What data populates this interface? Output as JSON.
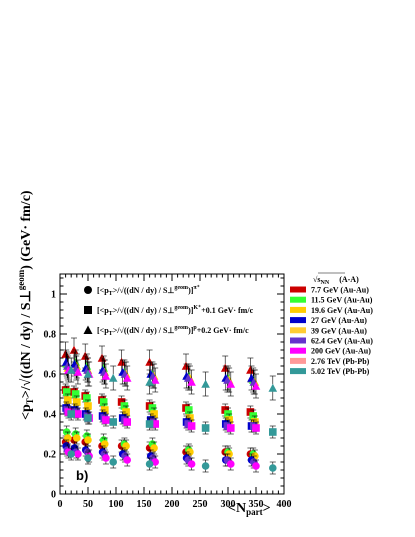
{
  "chart_data": {
    "type": "scatter",
    "xlabel": "<N",
    "xlabel_sub": "part",
    "xlabel_tail": ">",
    "ylabel_main": "<p",
    "ylabel_sub": "T",
    "ylabel_rest": ">/√((dN / dy) / S",
    "ylabel_perp": "⊥",
    "ylabel_sup": "geom",
    "ylabel_unit": ") (GeV· fm/c)",
    "xlim": [
      0,
      400
    ],
    "ylim": [
      0,
      1.1
    ],
    "x_ticks": [
      0,
      50,
      100,
      150,
      200,
      250,
      300,
      350,
      400
    ],
    "y_ticks": [
      0,
      0.2,
      0.4,
      0.6,
      0.8,
      1
    ],
    "panel_label": "b)",
    "formula_legend": [
      {
        "marker": "circle",
        "base": "[<p",
        "sub": "T",
        "mid": ">/√((dN / dy) / S",
        "perp": "⊥",
        "sup": "geom",
        "close": ")]",
        "particle": "π⁺",
        "offset": ""
      },
      {
        "marker": "square",
        "base": "[<p",
        "sub": "T",
        "mid": ">/√((dN / dy) / S",
        "perp": "⊥",
        "sup": "geom",
        "close": ")]",
        "particle": "K⁺",
        "offset": "+0.1 GeV· fm/c"
      },
      {
        "marker": "triangle",
        "base": "[<p",
        "sub": "T",
        "mid": ">/√((dN / dy) / S",
        "perp": "⊥",
        "sup": "geom",
        "close": ")]",
        "particle": "p",
        "offset": "+0.2 GeV· fm/c"
      }
    ],
    "energy_legend": {
      "header_sqrt": "√s",
      "header_sub": "NN",
      "header_tail": "(A-A)",
      "entries": [
        {
          "label": "7.7 GeV  (Au-Au)",
          "color": "#cc0000"
        },
        {
          "label": "11.5 GeV (Au-Au)",
          "color": "#33ff33"
        },
        {
          "label": "19.6 GeV (Au-Au)",
          "color": "#ffcc00"
        },
        {
          "label": "27 GeV    (Au-Au)",
          "color": "#0000cc"
        },
        {
          "label": "39 GeV    (Au-Au)",
          "color": "#ffcc33"
        },
        {
          "label": "62.4 GeV (Au-Au)",
          "color": "#6633cc"
        },
        {
          "label": "200 GeV  (Au-Au)",
          "color": "#ff00ff"
        },
        {
          "label": "2.76 TeV (Pb-Pb)",
          "color": "#ff9999"
        },
        {
          "label": "5.02 TeV (Pb-Pb)",
          "color": "#339999"
        }
      ]
    },
    "series": [
      {
        "color": "#cc0000",
        "marker": "circle",
        "x": [
          10,
          25,
          45,
          75,
          110,
          160,
          225,
          295,
          340
        ],
        "y": [
          0.26,
          0.27,
          0.26,
          0.24,
          0.24,
          0.23,
          0.21,
          0.21,
          0.2
        ]
      },
      {
        "color": "#33ff33",
        "marker": "circle",
        "x": [
          12,
          28,
          48,
          78,
          115,
          165,
          230,
          300,
          345
        ],
        "y": [
          0.31,
          0.3,
          0.29,
          0.27,
          0.25,
          0.25,
          0.22,
          0.21,
          0.2
        ]
      },
      {
        "color": "#ffcc00",
        "marker": "circle",
        "x": [
          14,
          30,
          50,
          80,
          118,
          168,
          232,
          302,
          348
        ],
        "y": [
          0.28,
          0.28,
          0.27,
          0.25,
          0.24,
          0.23,
          0.21,
          0.2,
          0.19
        ]
      },
      {
        "color": "#0000cc",
        "marker": "circle",
        "x": [
          11,
          26,
          46,
          76,
          112,
          162,
          226,
          296,
          342
        ],
        "y": [
          0.24,
          0.23,
          0.22,
          0.21,
          0.2,
          0.19,
          0.18,
          0.17,
          0.17
        ]
      },
      {
        "color": "#6633cc",
        "marker": "circle",
        "x": [
          13,
          29,
          49,
          79,
          116,
          166,
          229,
          299,
          346
        ],
        "y": [
          0.22,
          0.21,
          0.21,
          0.2,
          0.19,
          0.18,
          0.17,
          0.17,
          0.16
        ]
      },
      {
        "color": "#ff00ff",
        "marker": "circle",
        "x": [
          15,
          32,
          52,
          82,
          120,
          170,
          235,
          305,
          350
        ],
        "y": [
          0.21,
          0.2,
          0.19,
          0.18,
          0.17,
          0.16,
          0.15,
          0.15,
          0.14
        ]
      },
      {
        "color": "#339999",
        "marker": "circle",
        "x": [
          20,
          50,
          95,
          160,
          260,
          380
        ],
        "y": [
          0.2,
          0.18,
          0.16,
          0.15,
          0.14,
          0.13
        ]
      },
      {
        "color": "#cc0000",
        "marker": "square",
        "x": [
          10,
          25,
          45,
          75,
          110,
          160,
          225,
          295,
          340
        ],
        "y": [
          0.52,
          0.51,
          0.49,
          0.47,
          0.46,
          0.44,
          0.43,
          0.42,
          0.41
        ]
      },
      {
        "color": "#33ff33",
        "marker": "square",
        "x": [
          12,
          28,
          48,
          78,
          115,
          165,
          230,
          300,
          345
        ],
        "y": [
          0.51,
          0.5,
          0.48,
          0.46,
          0.44,
          0.43,
          0.42,
          0.4,
          0.39
        ]
      },
      {
        "color": "#ffcc00",
        "marker": "square",
        "x": [
          14,
          30,
          50,
          80,
          118,
          168,
          232,
          302,
          348
        ],
        "y": [
          0.47,
          0.46,
          0.44,
          0.42,
          0.41,
          0.4,
          0.38,
          0.37,
          0.36
        ]
      },
      {
        "color": "#0000cc",
        "marker": "square",
        "x": [
          11,
          26,
          46,
          76,
          112,
          162,
          226,
          296,
          342
        ],
        "y": [
          0.43,
          0.42,
          0.4,
          0.39,
          0.38,
          0.37,
          0.36,
          0.35,
          0.34
        ]
      },
      {
        "color": "#6633cc",
        "marker": "square",
        "x": [
          13,
          29,
          49,
          79,
          116,
          166,
          229,
          299,
          346
        ],
        "y": [
          0.42,
          0.41,
          0.39,
          0.38,
          0.37,
          0.36,
          0.35,
          0.34,
          0.34
        ]
      },
      {
        "color": "#ff00ff",
        "marker": "square",
        "x": [
          15,
          32,
          52,
          82,
          120,
          170,
          235,
          305,
          350
        ],
        "y": [
          0.41,
          0.4,
          0.38,
          0.37,
          0.36,
          0.35,
          0.34,
          0.33,
          0.33
        ]
      },
      {
        "color": "#339999",
        "marker": "square",
        "x": [
          20,
          50,
          95,
          160,
          260,
          380
        ],
        "y": [
          0.4,
          0.38,
          0.36,
          0.35,
          0.33,
          0.31
        ]
      },
      {
        "color": "#cc0000",
        "marker": "triangle",
        "x": [
          10,
          25,
          45,
          75,
          110,
          160,
          225,
          295,
          340
        ],
        "y": [
          0.7,
          0.72,
          0.69,
          0.68,
          0.66,
          0.66,
          0.64,
          0.63,
          0.62
        ]
      },
      {
        "color": "#33ff33",
        "marker": "triangle",
        "x": [
          12,
          28,
          48,
          78,
          115,
          165,
          230,
          300,
          345
        ],
        "y": [
          0.65,
          0.66,
          0.64,
          0.63,
          0.61,
          0.6,
          0.59,
          0.58,
          0.57
        ]
      },
      {
        "color": "#ffcc00",
        "marker": "triangle",
        "x": [
          14,
          30,
          50,
          80,
          118,
          168,
          232,
          302,
          348
        ],
        "y": [
          0.63,
          0.64,
          0.62,
          0.61,
          0.6,
          0.59,
          0.58,
          0.57,
          0.56
        ]
      },
      {
        "color": "#0000cc",
        "marker": "triangle",
        "x": [
          11,
          26,
          46,
          76,
          112,
          162,
          226,
          296,
          342
        ],
        "y": [
          0.66,
          0.65,
          0.63,
          0.62,
          0.61,
          0.6,
          0.59,
          0.58,
          0.58
        ]
      },
      {
        "color": "#6633cc",
        "marker": "triangle",
        "x": [
          13,
          29,
          49,
          79,
          116,
          166,
          229,
          299,
          346
        ],
        "y": [
          0.64,
          0.63,
          0.62,
          0.61,
          0.6,
          0.59,
          0.58,
          0.57,
          0.56
        ]
      },
      {
        "color": "#ff00ff",
        "marker": "triangle",
        "x": [
          15,
          32,
          52,
          82,
          120,
          170,
          235,
          305,
          350
        ],
        "y": [
          0.62,
          0.61,
          0.6,
          0.59,
          0.58,
          0.57,
          0.56,
          0.55,
          0.54
        ]
      },
      {
        "color": "#339999",
        "marker": "triangle",
        "x": [
          20,
          50,
          95,
          160,
          260,
          380
        ],
        "y": [
          0.62,
          0.6,
          0.58,
          0.56,
          0.55,
          0.53
        ]
      }
    ]
  }
}
